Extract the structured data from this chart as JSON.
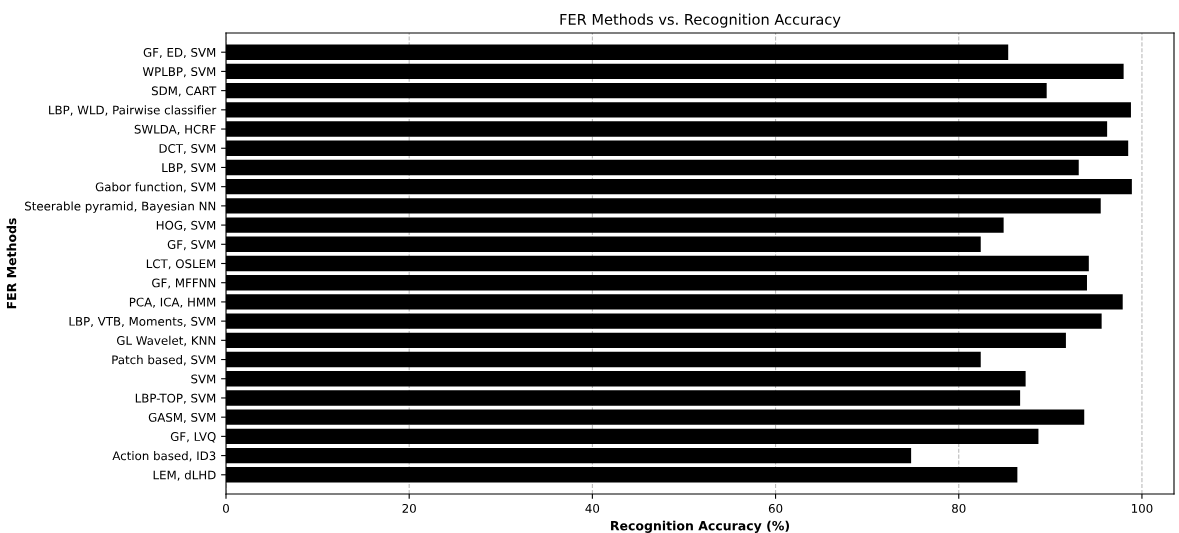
{
  "chart_data": {
    "type": "bar",
    "orientation": "horizontal",
    "title": "FER Methods vs. Recognition Accuracy",
    "xlabel": "Recognition Accuracy (%)",
    "ylabel": "FER Methods",
    "categories": [
      "GF, ED, SVM",
      "WPLBP, SVM",
      "SDM, CART",
      "LBP, WLD, Pairwise classifier",
      "SWLDA, HCRF",
      "DCT, SVM",
      "LBP, SVM",
      "Gabor function, SVM",
      "Steerable pyramid, Bayesian NN",
      "HOG, SVM",
      "GF, SVM",
      "LCT, OSLEM",
      "GF, MFFNN",
      "PCA, ICA, HMM",
      "LBP, VTB, Moments, SVM",
      "GL Wavelet, KNN",
      "Patch based, SVM",
      "SVM",
      "LBP-TOP, SVM",
      "GASM, SVM",
      "GF, LVQ",
      "Action based, ID3",
      "LEM, dLHD"
    ],
    "values": [
      85.4,
      98.0,
      89.6,
      98.8,
      96.2,
      98.5,
      93.1,
      98.9,
      95.5,
      84.9,
      82.4,
      94.2,
      94.0,
      97.9,
      95.6,
      91.7,
      82.4,
      87.3,
      86.7,
      93.7,
      88.7,
      74.8,
      86.4
    ],
    "color": "#000000",
    "xlim": [
      0,
      103.5
    ],
    "xticks": [
      0,
      20,
      40,
      60,
      80,
      100
    ],
    "grid": "x"
  }
}
